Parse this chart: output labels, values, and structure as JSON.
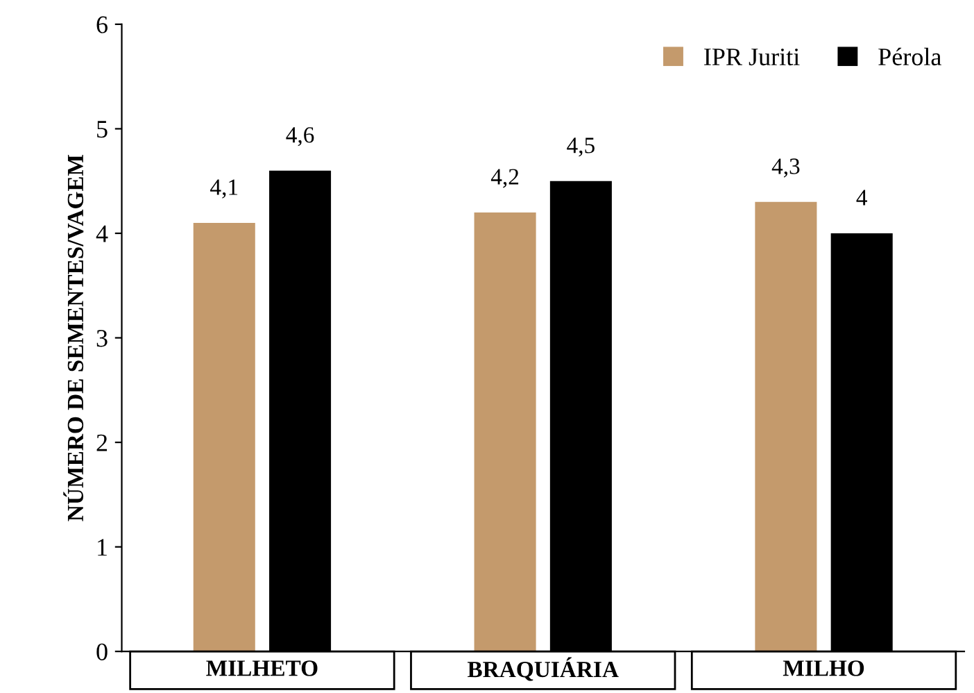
{
  "chart_data": {
    "type": "bar",
    "ylabel": "NÚMERO DE SEMENTES/VAGEM",
    "categories": [
      "MILHETO",
      "BRAQUIÁRIA",
      "MILHO"
    ],
    "series": [
      {
        "name": "IPR Juriti",
        "color": "#c49a6c",
        "values": [
          4.1,
          4.2,
          4.3
        ],
        "value_labels": [
          "4,1",
          "4,2",
          "4,3"
        ]
      },
      {
        "name": "Pérola",
        "color": "#000000",
        "values": [
          4.6,
          4.5,
          4.0
        ],
        "value_labels": [
          "4,6",
          "4,5",
          "4"
        ]
      }
    ],
    "ylim": [
      0,
      6
    ],
    "yticks": [
      0,
      1,
      2,
      3,
      4,
      5,
      6
    ],
    "grid": false,
    "legend": "top right"
  }
}
